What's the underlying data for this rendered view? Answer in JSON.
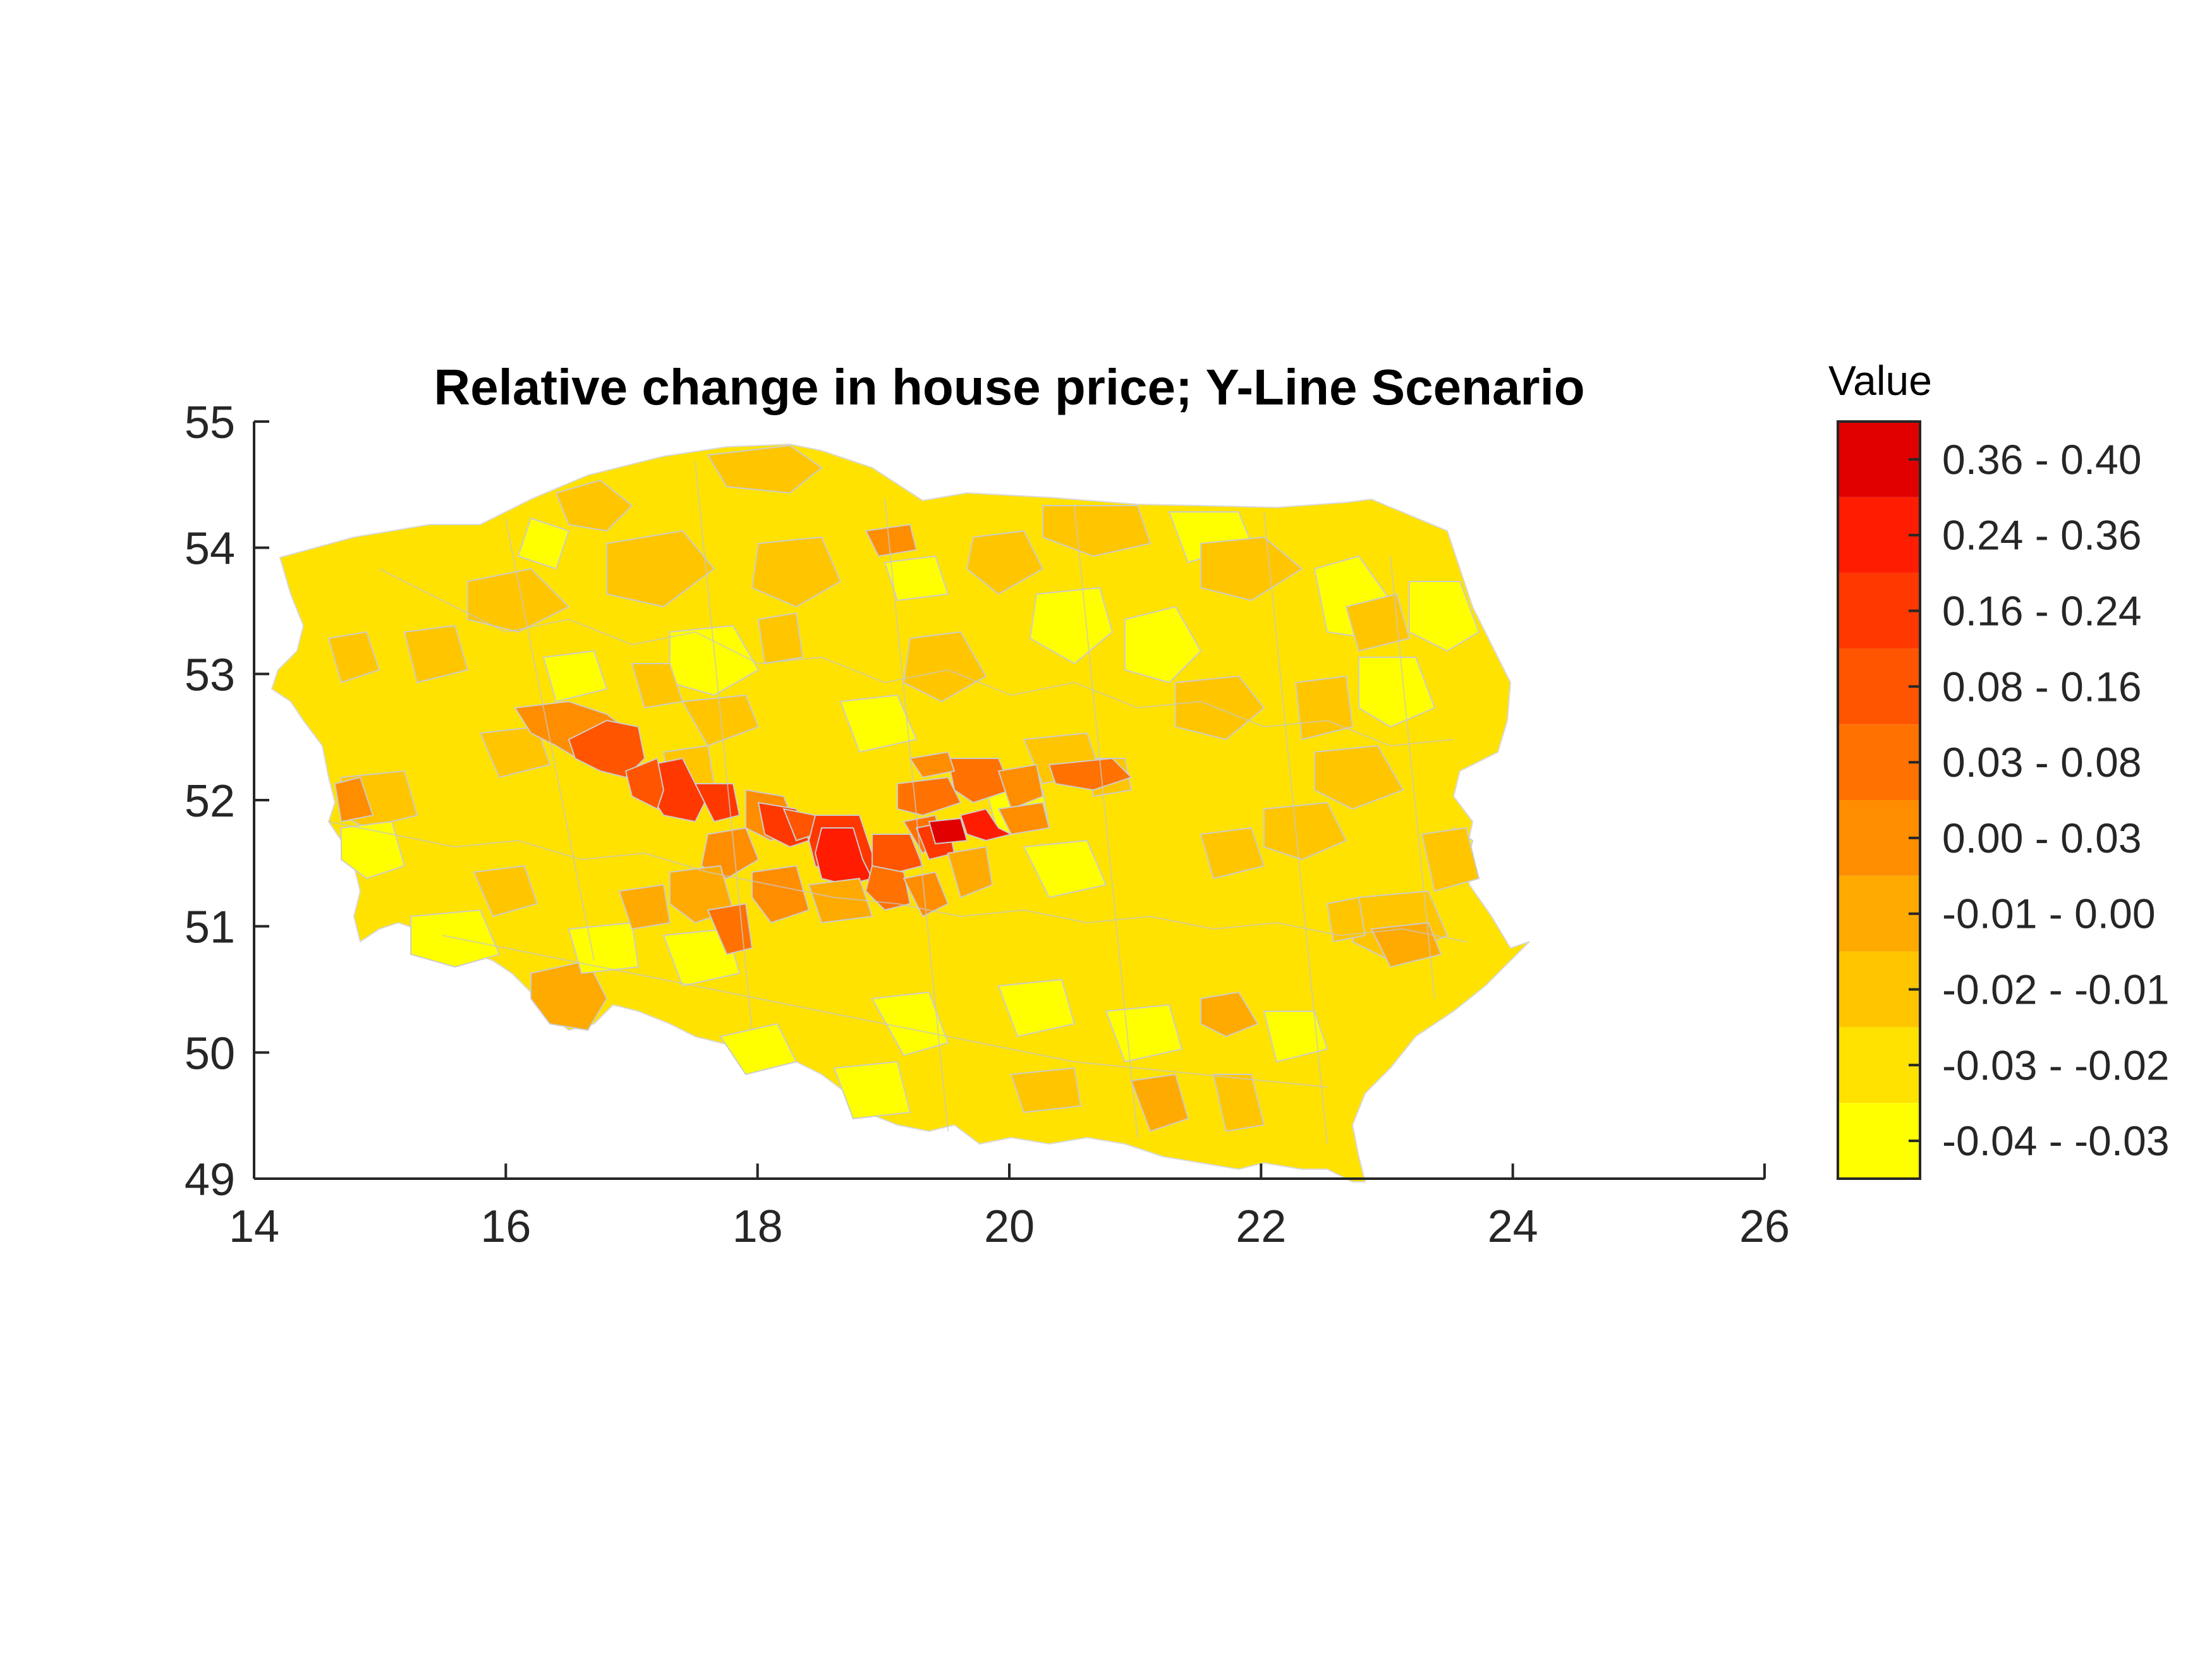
{
  "chart_data": {
    "type": "choropleth",
    "title": "Relative change in house price; Y-Line Scenario",
    "xlim": [
      14,
      26
    ],
    "ylim": [
      49,
      55
    ],
    "x_ticks": [
      "14",
      "16",
      "18",
      "20",
      "22",
      "24",
      "26"
    ],
    "y_ticks": [
      "49",
      "50",
      "51",
      "52",
      "53",
      "54",
      "55"
    ],
    "legend": {
      "title": "Value",
      "placement": "right",
      "bins": [
        {
          "label": "0.36 - 0.40",
          "color": "#E10000"
        },
        {
          "label": "0.24 - 0.36",
          "color": "#FF1C00"
        },
        {
          "label": "0.16 - 0.24",
          "color": "#FF3800"
        },
        {
          "label": "0.08 - 0.16",
          "color": "#FF5500"
        },
        {
          "label": "0.03 - 0.08",
          "color": "#FF7100"
        },
        {
          "label": "0.00 - 0.03",
          "color": "#FF8D00"
        },
        {
          "label": "-0.01 - 0.00",
          "color": "#FFAA00"
        },
        {
          "label": "-0.02 - -0.01",
          "color": "#FFC600"
        },
        {
          "label": "-0.03 - -0.02",
          "color": "#FFE200"
        },
        {
          "label": "-0.04 - -0.03",
          "color": "#FFFF00"
        }
      ]
    }
  }
}
